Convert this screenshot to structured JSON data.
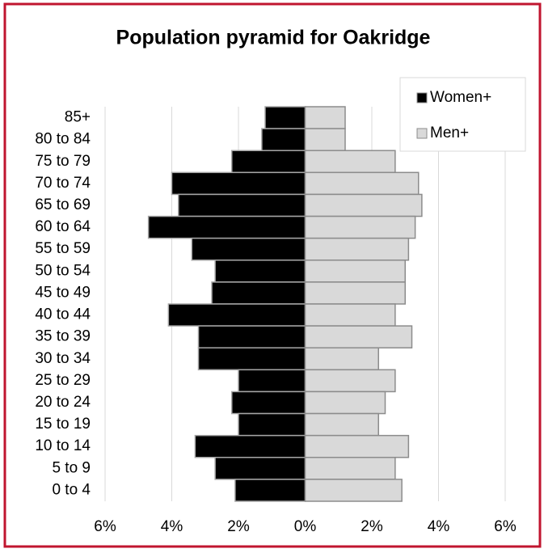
{
  "chart_data": {
    "type": "pyramid",
    "title": "Population pyramid for Oakridge",
    "categories": [
      "85+",
      "80 to 84",
      "75 to 79",
      "70 to 74",
      "65 to 69",
      "60 to 64",
      "55 to 59",
      "50 to 54",
      "45 to 49",
      "40 to 44",
      "35 to 39",
      "30 to 34",
      "25 to 29",
      "20 to 24",
      "15 to 19",
      "10 to 14",
      "5 to 9",
      "0 to 4"
    ],
    "series": [
      {
        "name": "Women+",
        "color": "#000000",
        "side": "left",
        "values": [
          1.2,
          1.3,
          2.2,
          4.0,
          3.8,
          4.7,
          3.4,
          2.7,
          2.8,
          4.1,
          3.2,
          3.2,
          2.0,
          2.2,
          2.0,
          3.3,
          2.7,
          2.1
        ]
      },
      {
        "name": "Men+",
        "color": "#d9d9d9",
        "side": "right",
        "values": [
          1.2,
          1.2,
          2.7,
          3.4,
          3.5,
          3.3,
          3.1,
          3.0,
          3.0,
          2.7,
          3.2,
          2.2,
          2.7,
          2.4,
          2.2,
          3.1,
          2.7,
          2.9
        ]
      }
    ],
    "xlim": [
      -6,
      6
    ],
    "xticks": [
      {
        "value": -6,
        "label": "6%"
      },
      {
        "value": -4,
        "label": "4%"
      },
      {
        "value": -2,
        "label": "2%"
      },
      {
        "value": 0,
        "label": "0%"
      },
      {
        "value": 2,
        "label": "2%"
      },
      {
        "value": 4,
        "label": "4%"
      },
      {
        "value": 6,
        "label": "6%"
      }
    ],
    "grid": true,
    "legend": "top-right"
  }
}
